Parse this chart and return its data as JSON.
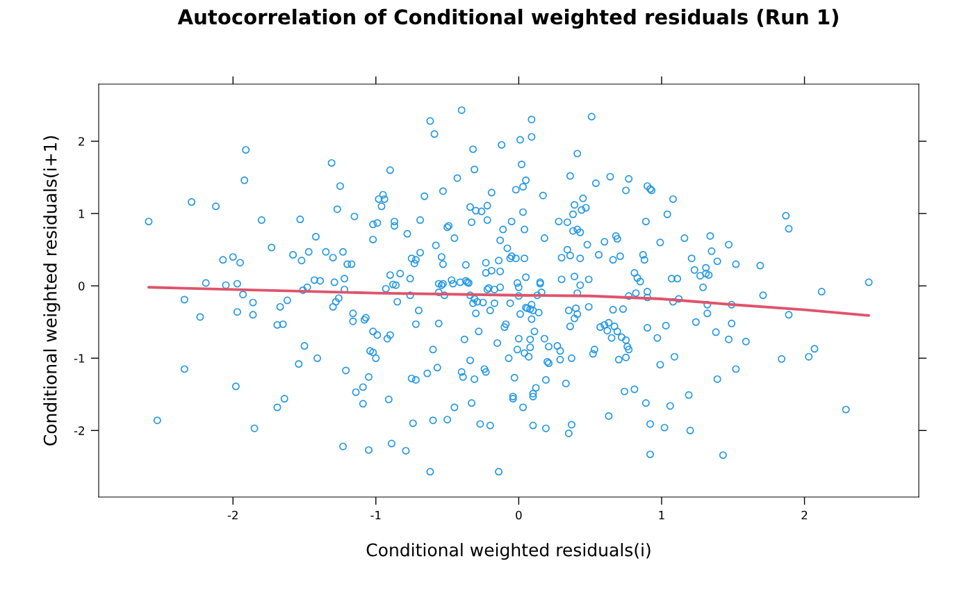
{
  "chart_data": {
    "type": "scatter",
    "title": "Autocorrelation of Conditional weighted residuals (Run 1)",
    "xlabel": "Conditional weighted residuals(i)",
    "ylabel": "Conditional weighted residuals(i+1)",
    "xlim": [
      -2.94,
      2.8
    ],
    "ylim": [
      -2.92,
      2.79
    ],
    "xticks": [
      -2,
      -1,
      0,
      1,
      2
    ],
    "yticks": [
      -2,
      -1,
      0,
      1,
      2
    ],
    "grid": false,
    "series": [
      {
        "marker": "circle",
        "color": "#2297e6",
        "x": [
          -2.59,
          -2.53,
          -2.34,
          -2.34,
          -2.29,
          -2.23,
          -2.19,
          -2.12,
          -2.07,
          -2.05,
          -2.0,
          -1.98,
          -1.97,
          -1.97,
          -1.95,
          -1.93,
          -1.92,
          -1.91,
          -1.86,
          -1.86,
          -1.85,
          -1.8,
          -1.73,
          -1.69,
          -1.69,
          -1.67,
          -1.65,
          -1.64,
          -1.62,
          -1.58,
          -1.54,
          -1.53,
          -1.52,
          -1.51,
          -1.5,
          -1.48,
          -1.47,
          -1.43,
          -1.42,
          -1.41,
          -1.39,
          -1.35,
          -1.31,
          -1.3,
          -1.3,
          -1.29,
          -1.28,
          -1.27,
          -1.26,
          -1.25,
          -1.23,
          -1.23,
          -1.22,
          -1.22,
          -1.21,
          -1.2,
          -1.17,
          -1.16,
          -1.16,
          -1.15,
          -1.14,
          -1.09,
          -1.09,
          -1.08,
          -1.07,
          -1.05,
          -1.05,
          -1.04,
          -1.02,
          -1.02,
          -1.02,
          -1.02,
          -1.0,
          -0.99,
          -0.99,
          -0.98,
          -0.96,
          -0.95,
          -0.94,
          -0.93,
          -0.92,
          -0.91,
          -0.9,
          -0.9,
          -0.9,
          -0.89,
          -0.88,
          -0.87,
          -0.87,
          -0.86,
          -0.85,
          -0.83,
          -0.79,
          -0.78,
          -0.76,
          -0.76,
          -0.75,
          -0.75,
          -0.74,
          -0.73,
          -0.72,
          -0.72,
          -0.72,
          -0.7,
          -0.69,
          -0.69,
          -0.66,
          -0.64,
          -0.62,
          -0.62,
          -0.6,
          -0.6,
          -0.59,
          -0.58,
          -0.57,
          -0.56,
          -0.56,
          -0.56,
          -0.54,
          -0.54,
          -0.53,
          -0.53,
          -0.52,
          -0.53,
          -0.5,
          -0.5,
          -0.49,
          -0.47,
          -0.46,
          -0.45,
          -0.45,
          -0.43,
          -0.41,
          -0.4,
          -0.4,
          -0.39,
          -0.38,
          -0.37,
          -0.37,
          -0.36,
          -0.35,
          -0.34,
          -0.34,
          -0.34,
          -0.33,
          -0.33,
          -0.32,
          -0.32,
          -0.31,
          -0.31,
          -0.31,
          -0.3,
          -0.3,
          -0.29,
          -0.28,
          -0.27,
          -0.26,
          -0.25,
          -0.24,
          -0.23,
          -0.23,
          -0.23,
          -0.22,
          -0.22,
          -0.22,
          -0.21,
          -0.2,
          -0.2,
          -0.19,
          -0.19,
          -0.17,
          -0.17,
          -0.15,
          -0.14,
          -0.14,
          -0.13,
          -0.13,
          -0.13,
          -0.12,
          -0.11,
          -0.1,
          -0.09,
          -0.08,
          -0.07,
          -0.06,
          -0.06,
          -0.05,
          -0.05,
          -0.04,
          -0.04,
          -0.03,
          -0.02,
          -0.02,
          -0.01,
          -0.01,
          0.0,
          0.0,
          0.0,
          0.01,
          0.01,
          0.02,
          0.03,
          0.03,
          0.03,
          0.04,
          0.04,
          0.04,
          0.05,
          0.05,
          0.05,
          0.06,
          0.07,
          0.08,
          0.08,
          0.08,
          0.09,
          0.09,
          0.09,
          0.09,
          0.1,
          0.1,
          0.1,
          0.1,
          0.11,
          0.12,
          0.13,
          0.14,
          0.15,
          0.15,
          0.16,
          0.17,
          0.18,
          0.18,
          0.19,
          0.19,
          0.2,
          0.21,
          0.21,
          0.27,
          0.28,
          0.29,
          0.29,
          0.3,
          0.3,
          0.34,
          0.33,
          0.34,
          0.35,
          0.35,
          0.36,
          0.36,
          0.36,
          0.37,
          0.37,
          0.38,
          0.38,
          0.39,
          0.39,
          0.39,
          0.4,
          0.41,
          0.41,
          0.41,
          0.41,
          0.43,
          0.43,
          0.43,
          0.44,
          0.45,
          0.47,
          0.48,
          0.49,
          0.49,
          0.51,
          0.52,
          0.53,
          0.54,
          0.56,
          0.57,
          0.6,
          0.6,
          0.62,
          0.63,
          0.63,
          0.64,
          0.65,
          0.66,
          0.66,
          0.67,
          0.68,
          0.69,
          0.69,
          0.7,
          0.71,
          0.72,
          0.73,
          0.74,
          0.75,
          0.75,
          0.75,
          0.76,
          0.77,
          0.77,
          0.77,
          0.81,
          0.81,
          0.82,
          0.83,
          0.85,
          0.87,
          0.88,
          0.89,
          0.89,
          0.9,
          0.9,
          0.9,
          0.9,
          0.92,
          0.92,
          0.93,
          0.92,
          0.97,
          0.99,
          0.99,
          1.02,
          1.03,
          1.04,
          1.06,
          1.07,
          1.08,
          1.08,
          1.09,
          1.11,
          1.12,
          1.16,
          1.19,
          1.2,
          1.21,
          1.23,
          1.24,
          1.27,
          1.29,
          1.31,
          1.31,
          1.32,
          1.32,
          1.33,
          1.34,
          1.35,
          1.38,
          1.39,
          1.39,
          1.43,
          1.47,
          1.47,
          1.49,
          1.49,
          1.52,
          1.52,
          1.59,
          1.69,
          1.71,
          1.84,
          1.87,
          1.89,
          1.89,
          2.03,
          2.07,
          2.12,
          2.29,
          2.45
        ],
        "values": [
          0.89,
          -1.86,
          -1.15,
          -0.19,
          1.16,
          -0.43,
          0.04,
          1.1,
          0.36,
          0.01,
          0.4,
          -1.39,
          -0.36,
          0.03,
          0.32,
          -0.12,
          1.46,
          1.88,
          -0.23,
          -0.4,
          -1.97,
          0.91,
          0.53,
          -0.54,
          -1.68,
          -0.29,
          -0.53,
          -1.56,
          -0.2,
          0.43,
          -1.08,
          0.92,
          0.35,
          -0.06,
          -0.83,
          -0.02,
          0.47,
          0.08,
          0.68,
          -1.0,
          0.07,
          0.47,
          1.7,
          0.39,
          -0.29,
          0.05,
          -0.22,
          1.06,
          -0.17,
          1.38,
          0.47,
          -2.22,
          0.1,
          -0.05,
          -1.17,
          0.3,
          0.3,
          -0.38,
          -0.49,
          0.96,
          -1.47,
          -1.63,
          -1.4,
          -0.47,
          -0.44,
          -2.27,
          -1.26,
          -0.9,
          0.85,
          -0.63,
          0.64,
          -0.92,
          -1.0,
          0.87,
          -0.68,
          1.2,
          1.1,
          1.26,
          1.2,
          -0.04,
          -0.73,
          -1.57,
          -0.68,
          1.6,
          0.15,
          -2.18,
          0.02,
          0.89,
          0.83,
          0.01,
          -0.22,
          0.17,
          -2.28,
          0.72,
          0.1,
          -0.13,
          0.38,
          -1.28,
          -1.9,
          0.31,
          -0.53,
          -1.3,
          0.36,
          -0.34,
          0.91,
          0.46,
          1.24,
          -1.21,
          2.28,
          -2.57,
          -0.88,
          -1.86,
          2.1,
          0.56,
          -1.13,
          -0.52,
          -0.09,
          0.03,
          0.01,
          0.4,
          0.3,
          1.31,
          -0.13,
          0.03,
          0.81,
          -1.85,
          0.83,
          0.08,
          0.03,
          0.66,
          -1.68,
          1.49,
          0.05,
          -1.19,
          2.43,
          -1.26,
          -0.74,
          0.07,
          0.29,
          0.05,
          0.04,
          -0.13,
          1.09,
          -1.03,
          0.88,
          -1.62,
          1.89,
          -0.24,
          -0.18,
          -1.29,
          1.61,
          1.04,
          -0.38,
          -0.22,
          -0.63,
          -1.91,
          1.03,
          -0.23,
          -1.15,
          -1.19,
          0.32,
          0.18,
          0.91,
          1.11,
          -0.05,
          -0.03,
          -1.93,
          -0.34,
          1.29,
          0.21,
          -0.24,
          -0.05,
          -0.79,
          -2.57,
          0.35,
          0.2,
          -0.02,
          0.63,
          1.95,
          0.78,
          -0.57,
          -0.53,
          0.52,
          -1.0,
          0.38,
          -0.24,
          0.89,
          0.41,
          -1.53,
          -1.56,
          -1.27,
          1.33,
          0.38,
          0.04,
          -0.88,
          -0.14,
          -0.02,
          -0.73,
          2.02,
          -0.39,
          1.68,
          -1.68,
          1.02,
          1.37,
          0.78,
          0.38,
          -0.93,
          0.12,
          -0.3,
          1.46,
          -0.31,
          -0.98,
          -0.85,
          -0.74,
          -0.32,
          -0.46,
          2.3,
          2.06,
          -0.26,
          -0.34,
          -1.93,
          -1.49,
          -1.53,
          -0.63,
          -1.41,
          -0.13,
          -0.37,
          0.05,
          0.03,
          -0.09,
          1.25,
          -0.73,
          0.66,
          -1.3,
          -1.97,
          -1.05,
          -1.07,
          -0.84,
          -0.83,
          0.89,
          -0.9,
          -1.02,
          0.39,
          0.09,
          0.88,
          -1.35,
          0.5,
          -2.04,
          -0.34,
          0.42,
          -0.56,
          1.52,
          -1.0,
          -1.92,
          0.99,
          0.76,
          1.12,
          -0.45,
          0.13,
          -0.31,
          -0.39,
          0.78,
          -0.1,
          1.83,
          0.01,
          0.74,
          0.38,
          1.05,
          1.21,
          1.08,
          0.57,
          -0.29,
          0.09,
          2.34,
          -0.94,
          -0.88,
          1.42,
          0.43,
          -0.57,
          -0.54,
          0.61,
          -0.62,
          -0.51,
          -1.8,
          1.51,
          -0.72,
          -0.33,
          0.36,
          -0.56,
          0.69,
          0.65,
          -0.63,
          -1.02,
          0.41,
          -0.71,
          -0.32,
          -1.46,
          1.32,
          -0.75,
          -0.99,
          -0.84,
          1.48,
          -0.88,
          -0.14,
          -1.43,
          0.18,
          -0.1,
          0.11,
          0.06,
          0.43,
          0.36,
          0.89,
          -1.62,
          -0.58,
          1.38,
          -0.16,
          -0.08,
          1.34,
          -1.91,
          1.32,
          -2.33,
          -0.72,
          0.6,
          -1.09,
          -1.96,
          -0.55,
          0.99,
          -1.66,
          0.1,
          1.2,
          -0.22,
          -0.98,
          0.1,
          -0.18,
          0.66,
          -1.51,
          -2.0,
          0.38,
          0.22,
          -0.5,
          0.14,
          -0.02,
          0.17,
          0.25,
          -0.38,
          -0.26,
          0.15,
          0.69,
          0.48,
          -0.64,
          0.34,
          -1.29,
          -2.34,
          -0.74,
          0.57,
          -0.26,
          -0.52,
          0.3,
          -1.15,
          -0.77,
          0.28,
          -0.13,
          -1.01,
          0.97,
          0.79,
          -0.4,
          -0.98,
          -0.87,
          -0.08,
          -1.71,
          0.05
        ]
      },
      {
        "type": "line",
        "marker": "none",
        "color": "#df536b",
        "x": [
          -2.59,
          -1.0,
          0.0,
          0.5,
          1.0,
          1.5,
          2.0,
          2.45
        ],
        "values": [
          -0.02,
          -0.1,
          -0.13,
          -0.14,
          -0.18,
          -0.26,
          -0.33,
          -0.41
        ]
      }
    ]
  }
}
